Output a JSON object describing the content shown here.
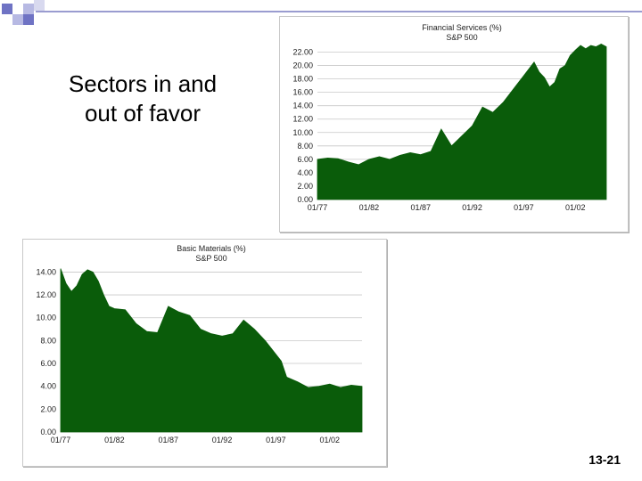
{
  "slide": {
    "title": "Sectors in and out of favor",
    "page_number": "13-21"
  },
  "colors": {
    "fill": "#0a5c0a",
    "gridline": "#c8c8c8",
    "accent_squares": [
      "#6f73c4",
      "#b7b9e3",
      "#d8d9ef"
    ],
    "topline": "#9a9cd0"
  },
  "chart_data": [
    {
      "type": "area",
      "title": "Financial Services (%)",
      "subtitle": "S&P 500",
      "xlabel": "",
      "ylabel": "",
      "x_ticks": [
        "01/77",
        "01/82",
        "01/87",
        "01/92",
        "01/97",
        "01/02"
      ],
      "y_ticks": [
        "0.00",
        "2.00",
        "4.00",
        "6.00",
        "8.00",
        "10.00",
        "12.00",
        "14.00",
        "16.00",
        "18.00",
        "20.00",
        "22.00"
      ],
      "ylim": [
        0,
        23
      ],
      "xlim": [
        1977,
        2005
      ],
      "grid": true,
      "x": [
        1977,
        1978,
        1979,
        1980,
        1981,
        1982,
        1983,
        1984,
        1985,
        1986,
        1987,
        1988,
        1989,
        1990,
        1991,
        1992,
        1993,
        1994,
        1995,
        1996,
        1997,
        1998,
        1998.5,
        1999,
        1999.5,
        2000,
        2000.5,
        2001,
        2001.5,
        2002,
        2002.5,
        2003,
        2003.5,
        2004,
        2004.5,
        2005
      ],
      "values": [
        6.0,
        6.2,
        6.1,
        5.6,
        5.2,
        6.0,
        6.4,
        6.0,
        6.6,
        7.0,
        6.7,
        7.2,
        10.5,
        8.0,
        9.5,
        11.0,
        13.8,
        13.0,
        14.5,
        16.5,
        18.5,
        20.5,
        19.0,
        18.2,
        16.8,
        17.5,
        19.5,
        20.0,
        21.5,
        22.3,
        23.0,
        22.5,
        23.0,
        22.8,
        23.2,
        22.8
      ]
    },
    {
      "type": "area",
      "title": "Basic Materials (%)",
      "subtitle": "S&P 500",
      "xlabel": "",
      "ylabel": "",
      "x_ticks": [
        "01/77",
        "01/82",
        "01/87",
        "01/92",
        "01/97",
        "01/02"
      ],
      "y_ticks": [
        "0.00",
        "2.00",
        "4.00",
        "6.00",
        "8.00",
        "10.00",
        "12.00",
        "14.00"
      ],
      "ylim": [
        0,
        14.5
      ],
      "xlim": [
        1977,
        2005
      ],
      "grid": true,
      "x": [
        1977,
        1977.5,
        1978,
        1978.5,
        1979,
        1979.5,
        1980,
        1980.5,
        1981,
        1981.5,
        1982,
        1983,
        1984,
        1985,
        1986,
        1987,
        1988,
        1989,
        1990,
        1991,
        1992,
        1993,
        1994,
        1995,
        1996,
        1997,
        1997.5,
        1998,
        1999,
        2000,
        2001,
        2002,
        2003,
        2004,
        2005
      ],
      "values": [
        14.3,
        13.0,
        12.3,
        12.8,
        13.8,
        14.2,
        14.0,
        13.2,
        12.0,
        11.0,
        10.8,
        10.7,
        9.5,
        8.8,
        8.7,
        11.0,
        10.5,
        10.2,
        9.0,
        8.6,
        8.4,
        8.6,
        9.8,
        9.0,
        8.0,
        6.8,
        6.2,
        4.8,
        4.4,
        3.9,
        4.0,
        4.2,
        3.9,
        4.1,
        4.0
      ]
    }
  ]
}
